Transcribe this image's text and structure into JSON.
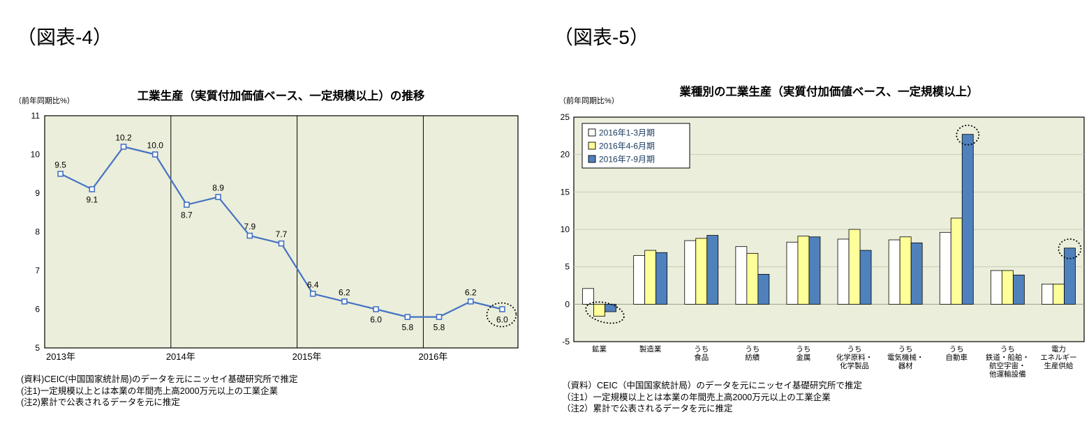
{
  "figure4": {
    "tag": "（図表-4）",
    "title": "工業生産（実質付加価値ベース、一定規模以上）の推移",
    "y_unit": "（前年同期比%）",
    "notes": [
      "(資料)CEIC(中国国家統計局)のデータを元にニッセイ基礎研究所で推定",
      "(注1)一定規模以上とは本業の年間売上高2000万元以上の工業企業",
      "(注2)累計で公表されるデータを元に推定"
    ]
  },
  "figure5": {
    "tag": "（図表-5）",
    "title": "業種別の工業生産（実質付加価値ベース、一定規模以上）",
    "y_unit": "（前年同期比%）",
    "notes": [
      "（資料）CEIC（中国国家統計局）のデータを元にニッセイ基礎研究所で推定",
      "（注1）一定規模以上とは本業の年間売上高2000万元以上の工業企業",
      "（注2）累計で公表されるデータを元に推定"
    ]
  },
  "chart_data": [
    {
      "type": "line",
      "title": "工業生産（実質付加価値ベース、一定規模以上）の推移",
      "ylabel": "（前年同期比%）",
      "ylim": [
        5,
        11
      ],
      "ytick_step": 1,
      "grid": "vertical-year-separators-only",
      "plot_bg": "#ebeeda",
      "line_color": "#4472c4",
      "marker": "white-square",
      "years": [
        "2013年",
        "2014年",
        "2015年",
        "2016年"
      ],
      "points_per_year": [
        4,
        4,
        4,
        3
      ],
      "values": [
        9.5,
        9.1,
        10.2,
        10.0,
        8.7,
        8.9,
        7.9,
        7.7,
        6.4,
        6.2,
        6.0,
        5.8,
        5.8,
        6.2,
        6.0
      ],
      "label_side": [
        "above",
        "below",
        "above",
        "above",
        "below",
        "above",
        "above",
        "above",
        "above",
        "above",
        "below",
        "below",
        "below",
        "above",
        "below"
      ],
      "annotations": [
        {
          "shape": "dotted-ellipse",
          "point_index": 14,
          "note": "latest value 6.0 circled"
        }
      ]
    },
    {
      "type": "bar",
      "title": "業種別の工業生産（実質付加価値ベース、一定規模以上）",
      "ylabel": "（前年同期比%）",
      "ylim": [
        -5,
        25
      ],
      "ytick_step": 5,
      "grid": "horizontal",
      "legend_position": "top-left",
      "plot_bg": "#ebeeda",
      "categories": [
        [
          "鉱業"
        ],
        [
          "製造業"
        ],
        [
          "うち",
          "食品"
        ],
        [
          "うち",
          "紡績"
        ],
        [
          "うち",
          "金属"
        ],
        [
          "うち",
          "化学原料・",
          "化学製品"
        ],
        [
          "うち",
          "電気機械・",
          "器材"
        ],
        [
          "うち",
          "自動車"
        ],
        [
          "うち",
          "鉄道・船舶・",
          "航空宇宙・",
          "他運輸設備"
        ],
        [
          "電力",
          "エネルギー",
          "生産供給"
        ]
      ],
      "series": [
        {
          "name": "2016年1-3月期",
          "color": "#ffffff",
          "values": [
            2.1,
            6.5,
            8.5,
            7.7,
            8.3,
            8.7,
            8.6,
            9.6,
            4.5,
            2.7
          ]
        },
        {
          "name": "2016年4-6月期",
          "color": "#ffff99",
          "values": [
            -1.6,
            7.2,
            8.8,
            6.8,
            9.1,
            10.0,
            9.0,
            11.5,
            4.5,
            2.7
          ]
        },
        {
          "name": "2016年7-9月期",
          "color": "#4f81bd",
          "values": [
            -1.0,
            6.9,
            9.2,
            4.0,
            9.0,
            7.2,
            8.2,
            22.7,
            3.9,
            7.5
          ]
        }
      ],
      "annotations": [
        {
          "shape": "dotted-ellipse",
          "category_index": 0,
          "series_index": 2,
          "edge": "negative",
          "note": "鉱業 negative bars circled"
        },
        {
          "shape": "dotted-ellipse",
          "category_index": 7,
          "series_index": 2,
          "edge": "top",
          "note": "自動車 7-9月期 bar top circled"
        },
        {
          "shape": "dotted-ellipse",
          "category_index": 9,
          "series_index": 2,
          "edge": "top",
          "note": "電力 7-9月期 bar top circled"
        }
      ]
    }
  ]
}
